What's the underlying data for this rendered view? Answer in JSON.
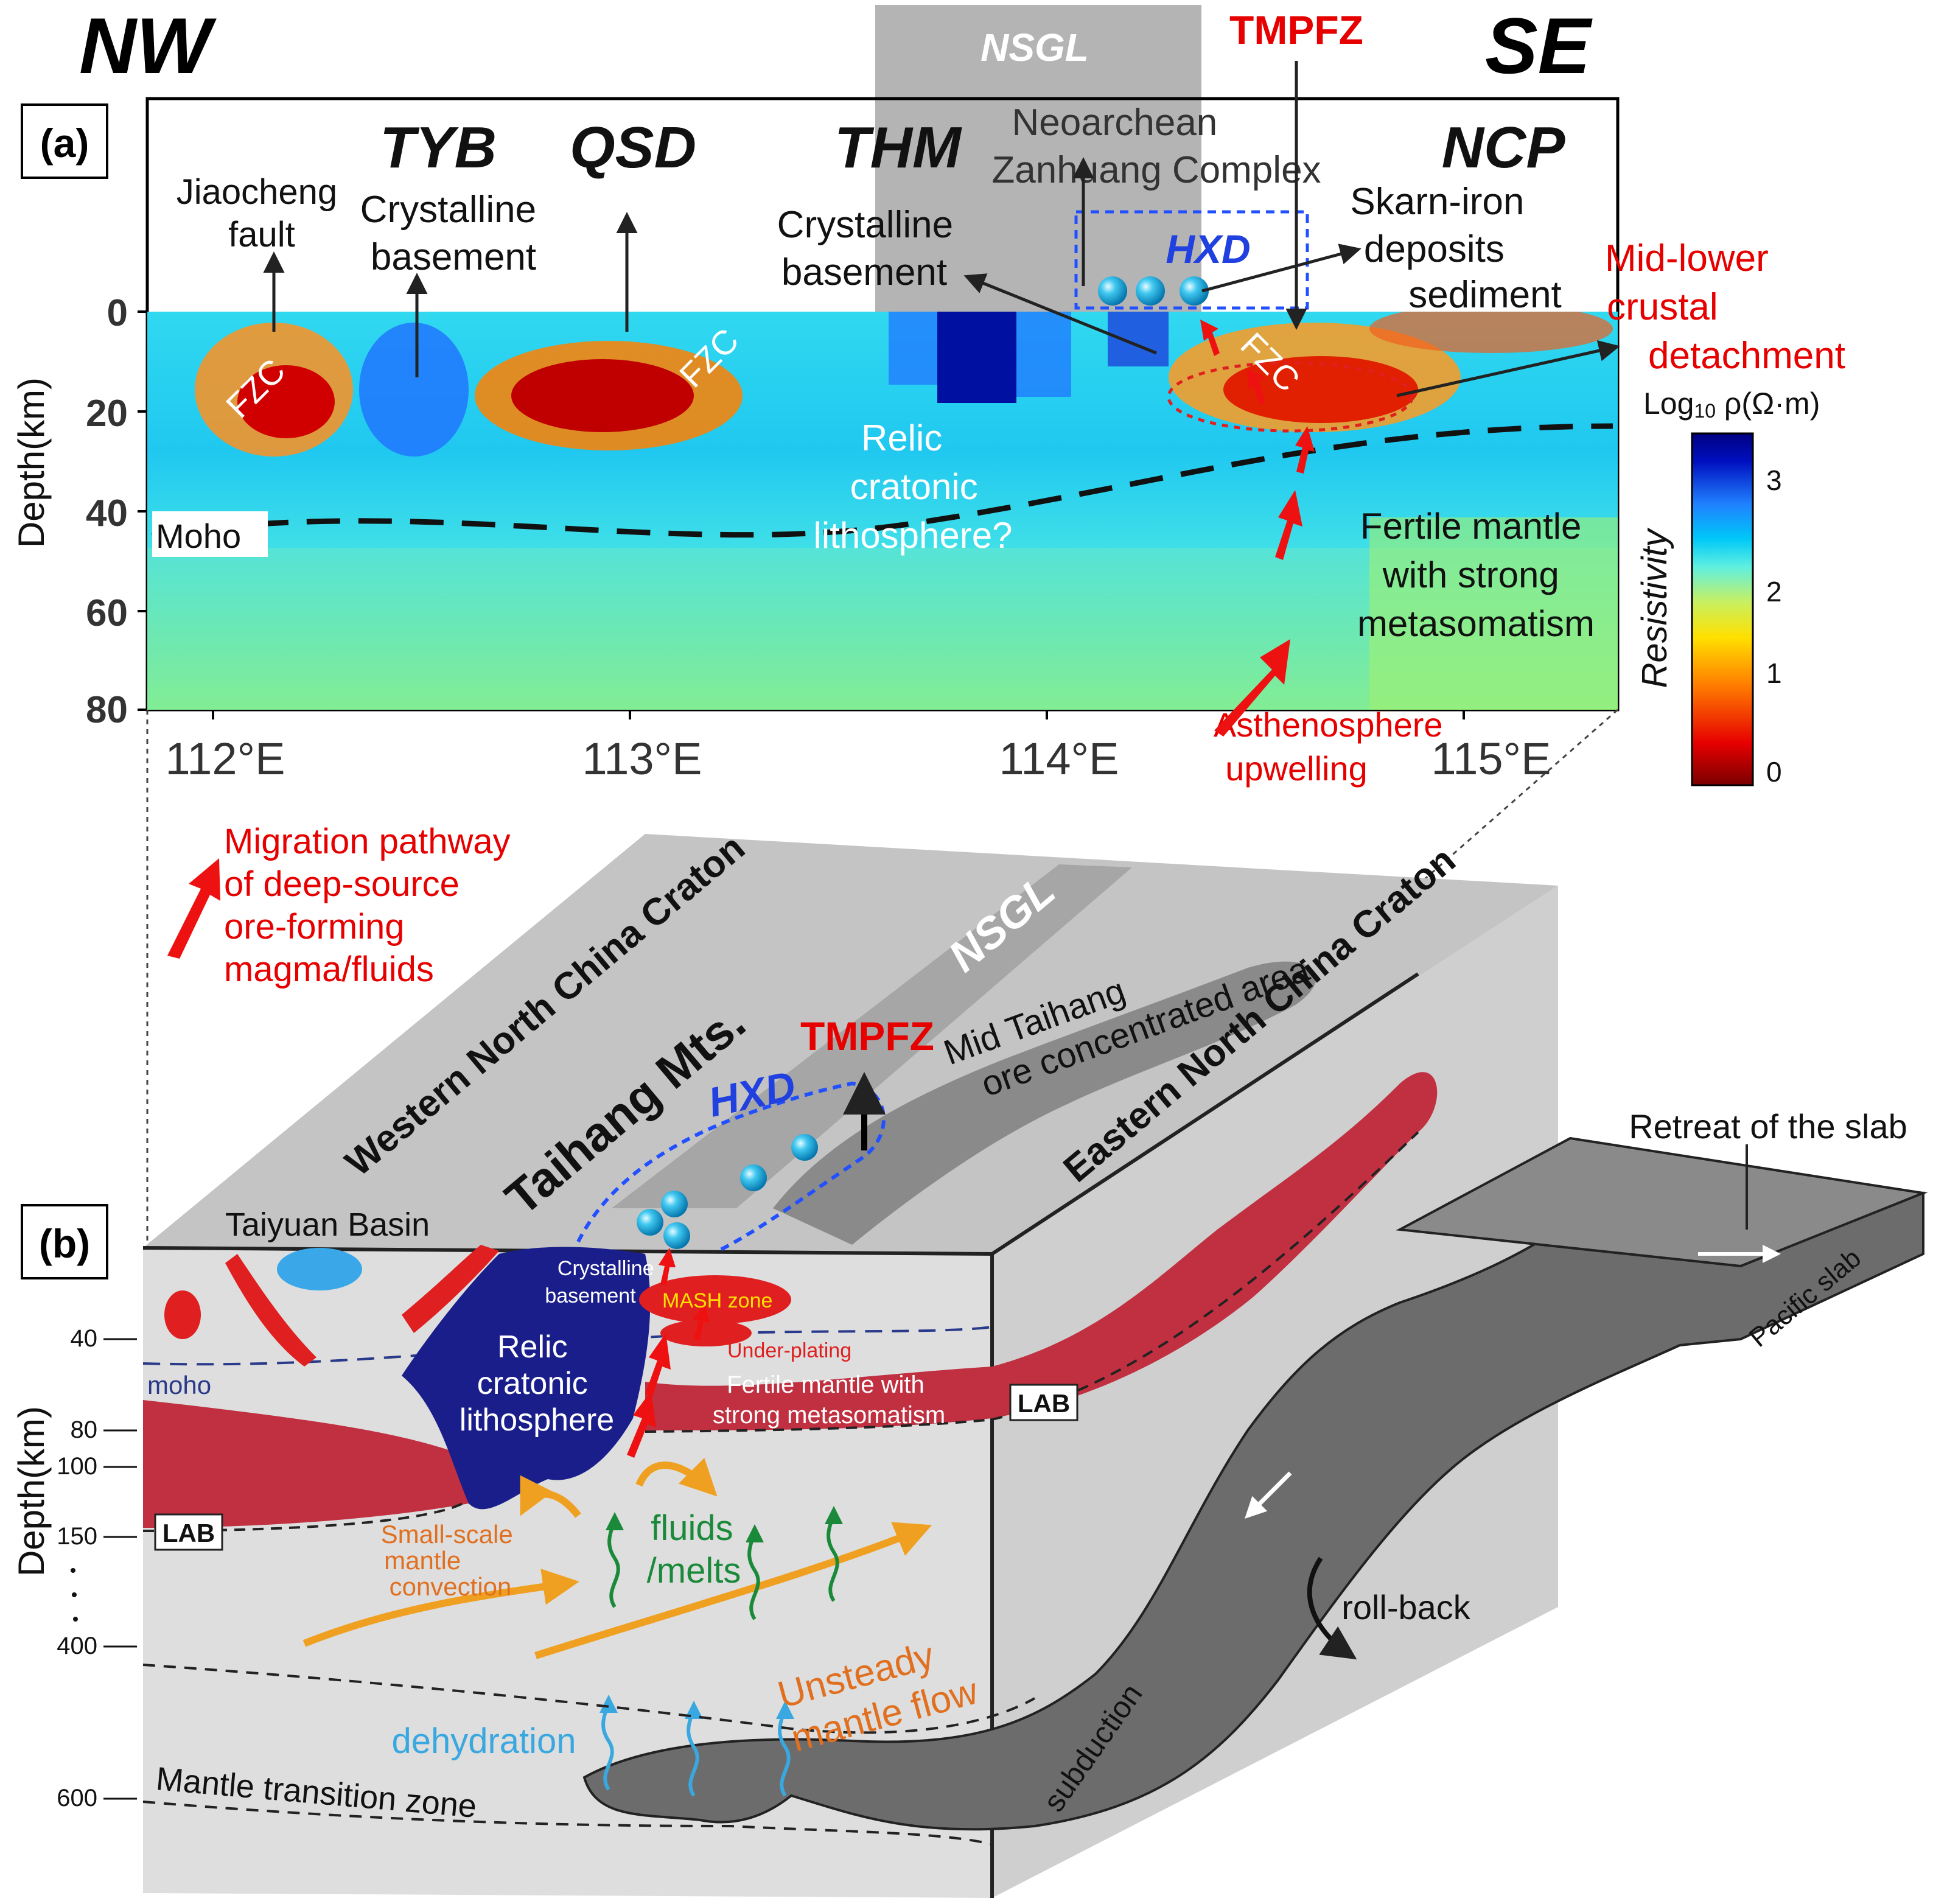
{
  "panel_a": {
    "label": "(a)",
    "corner_left": "NW",
    "corner_right": "SE",
    "nsgl": "NSGL",
    "tmpfz": "TMPFZ",
    "units": {
      "tyb": "TYB",
      "qsd": "QSD",
      "thm": "THM",
      "ncp": "NCP",
      "hxd": "HXD"
    },
    "annotations": {
      "jiaocheng_1": "Jiaocheng",
      "jiaocheng_2": "fault",
      "tyb_cb_1": "Crystalline",
      "tyb_cb_2": "basement",
      "thm_cb_1": "Crystalline",
      "thm_cb_2": "basement",
      "zanhuang_1": "Neoarchean",
      "zanhuang_2": "Zanhuang Complex",
      "skarn_1": "Skarn-iron",
      "skarn_2": "deposits",
      "skarn_3": "sediment",
      "detach_1": "Mid-lower",
      "detach_2": "crustal",
      "detach_3": "detachment",
      "relic_1": "Relic",
      "relic_2": "cratonic",
      "relic_3": "lithosphere?",
      "fertile_1": "Fertile mantle",
      "fertile_2": "with strong",
      "fertile_3": "metasomatism",
      "astheno_1": "Asthenosphere",
      "astheno_2": "upwelling",
      "moho": "Moho",
      "fzc": "FZC"
    },
    "y_axis_label": "Depth(km)",
    "y_ticks": [
      "0",
      "20",
      "40",
      "60",
      "80"
    ],
    "x_ticks": [
      "112°E",
      "113°E",
      "114°E",
      "115°E"
    ],
    "colorbar": {
      "title": "Log10 ρ(Ω·m)",
      "title_prefix": "Log",
      "title_sub": "10",
      "title_suffix": " ρ(Ω·m)",
      "side_label": "Resistivity",
      "ticks": [
        "3",
        "2",
        "1",
        "0"
      ],
      "colors": [
        "#7a0000",
        "#e60000",
        "#ff7a00",
        "#ffe000",
        "#c8f060",
        "#60f0e0",
        "#00c8f8",
        "#2080ff",
        "#0010c0",
        "#000080"
      ]
    }
  },
  "panel_b": {
    "label": "(b)",
    "legend": [
      "Migration pathway",
      "of deep-source",
      "ore-forming",
      "magma/fluids"
    ],
    "western": "Western North China Craton",
    "eastern": "Eastern North China Craton",
    "nsgl": "NSGL",
    "taihang": "Taihang Mts.",
    "tmpfz": "TMPFZ",
    "hxd": "HXD",
    "mid_taihang_1": "Mid Taihang",
    "mid_taihang_2": "ore concentrated area",
    "taiyuan": "Taiyuan Basin",
    "crystalline_1": "Crystalline",
    "crystalline_2": "basement",
    "mash": "MASH zone",
    "underplating": "Under-plating",
    "relic_1": "Relic",
    "relic_2": "cratonic",
    "relic_3": "lithosphere",
    "fertile_1": "Fertile mantle with",
    "fertile_2": "strong metasomatism",
    "moho": "moho",
    "lab": "LAB",
    "small_scale_1": "Small-scale",
    "small_scale_2": "mantle",
    "small_scale_3": "convection",
    "fluids_1": "fluids",
    "fluids_2": "/melts",
    "unsteady_1": "Unsteady",
    "unsteady_2": "mantle flow",
    "dehydration": "dehydration",
    "mtz": "Mantle transition zone",
    "retreat": "Retreat of the slab",
    "pacific": "Pacific slab",
    "rollback": "roll-back",
    "subduction": "subduction",
    "y_axis_label": "Depth(km)",
    "y_ticks": [
      "40",
      "80",
      "100",
      "150",
      "400",
      "600"
    ]
  }
}
